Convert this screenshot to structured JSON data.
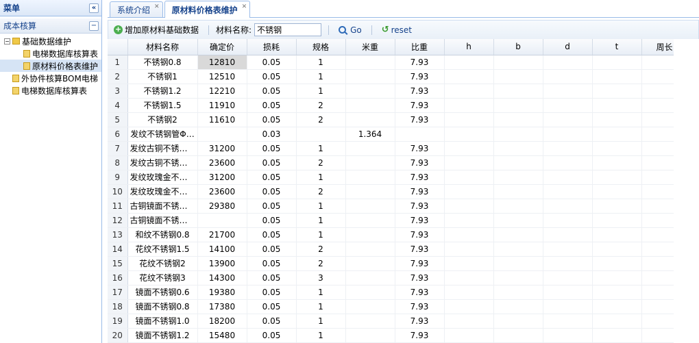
{
  "menu": {
    "title": "菜单",
    "collapse": "«",
    "section": "成本核算",
    "section_btn": "−",
    "tree": [
      {
        "label": "基础数据维护",
        "level": 0,
        "kind": "folder",
        "expander": "−"
      },
      {
        "label": "电梯数据库核算表",
        "level": 1,
        "kind": "file"
      },
      {
        "label": "原材料价格表维护",
        "level": 1,
        "kind": "file",
        "selected": true
      },
      {
        "label": "外协件核算BOM电梯",
        "level": 0,
        "kind": "file"
      },
      {
        "label": "电梯数据库核算表",
        "level": 0,
        "kind": "file"
      }
    ]
  },
  "tabs": [
    {
      "label": "系统介绍",
      "close": "✕",
      "active": false
    },
    {
      "label": "原材料价格表维护",
      "close": "✕",
      "active": true
    }
  ],
  "toolbar": {
    "add_label": "增加原材料基础数据",
    "field_label": "材料名称:",
    "field_value": "不锈钢",
    "go_label": "Go",
    "reset_label": "reset"
  },
  "grid": {
    "columns": [
      "",
      "材料名称",
      "确定价",
      "损耗",
      "规格",
      "米重",
      "比重",
      "h",
      "b",
      "d",
      "t",
      "周长"
    ],
    "rows": [
      [
        "1",
        "不锈钢0.8",
        "12810",
        "0.05",
        "1",
        "",
        "7.93"
      ],
      [
        "2",
        "不锈钢1",
        "12510",
        "0.05",
        "1",
        "",
        "7.93"
      ],
      [
        "3",
        "不锈钢1.2",
        "12210",
        "0.05",
        "1",
        "",
        "7.93"
      ],
      [
        "4",
        "不锈钢1.5",
        "11910",
        "0.05",
        "2",
        "",
        "7.93"
      ],
      [
        "5",
        "不锈钢2",
        "11610",
        "0.05",
        "2",
        "",
        "7.93"
      ],
      [
        "6",
        "发纹不锈钢管Φ…",
        "",
        "0.03",
        "",
        "1.364",
        ""
      ],
      [
        "7",
        "发纹古铜不锈钢…",
        "31200",
        "0.05",
        "1",
        "",
        "7.93"
      ],
      [
        "8",
        "发纹古铜不锈钢…",
        "23600",
        "0.05",
        "2",
        "",
        "7.93"
      ],
      [
        "9",
        "发纹玫瑰金不锈…",
        "31200",
        "0.05",
        "1",
        "",
        "7.93"
      ],
      [
        "10",
        "发纹玫瑰金不锈…",
        "23600",
        "0.05",
        "2",
        "",
        "7.93"
      ],
      [
        "11",
        "古铜镜面不锈钢…",
        "29380",
        "0.05",
        "1",
        "",
        "7.93"
      ],
      [
        "12",
        "古铜镜面不锈钢…",
        "",
        "0.05",
        "1",
        "",
        "7.93"
      ],
      [
        "13",
        "和纹不锈钢0.8",
        "21700",
        "0.05",
        "1",
        "",
        "7.93"
      ],
      [
        "14",
        "花纹不锈钢1.5",
        "14100",
        "0.05",
        "2",
        "",
        "7.93"
      ],
      [
        "15",
        "花纹不锈钢2",
        "13900",
        "0.05",
        "2",
        "",
        "7.93"
      ],
      [
        "16",
        "花纹不锈钢3",
        "14300",
        "0.05",
        "3",
        "",
        "7.93"
      ],
      [
        "17",
        "镜面不锈钢0.6",
        "19380",
        "0.05",
        "1",
        "",
        "7.93"
      ],
      [
        "18",
        "镜面不锈钢0.8",
        "17380",
        "0.05",
        "1",
        "",
        "7.93"
      ],
      [
        "19",
        "镜面不锈钢1.0",
        "18200",
        "0.05",
        "1",
        "",
        "7.93"
      ],
      [
        "20",
        "镜面不锈钢1.2",
        "15480",
        "0.05",
        "1",
        "",
        "7.93"
      ]
    ],
    "selected_cell": {
      "row": 0,
      "col": 2
    }
  }
}
